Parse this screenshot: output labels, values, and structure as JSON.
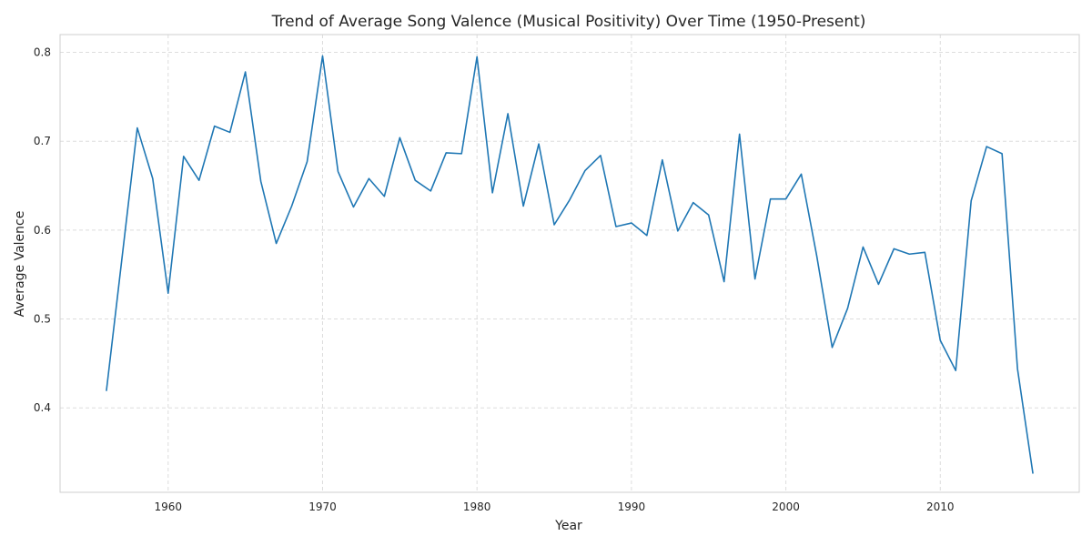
{
  "chart_data": {
    "type": "line",
    "title": "Trend of Average Song Valence (Musical Positivity) Over Time (1950-Present)",
    "xlabel": "Year",
    "ylabel": "Average Valence",
    "xlim": [
      1953,
      2019
    ],
    "ylim": [
      0.305,
      0.82
    ],
    "xticks": [
      1960,
      1970,
      1980,
      1990,
      2000,
      2010
    ],
    "yticks": [
      0.4,
      0.5,
      0.6,
      0.7,
      0.8
    ],
    "grid": true,
    "line_color": "#1f77b4",
    "x": [
      1956,
      1957,
      1958,
      1959,
      1960,
      1961,
      1962,
      1963,
      1964,
      1965,
      1966,
      1967,
      1968,
      1969,
      1970,
      1971,
      1972,
      1973,
      1974,
      1975,
      1976,
      1977,
      1978,
      1979,
      1980,
      1981,
      1982,
      1983,
      1984,
      1985,
      1986,
      1987,
      1988,
      1989,
      1990,
      1991,
      1992,
      1993,
      1994,
      1995,
      1996,
      1997,
      1998,
      1999,
      2000,
      2001,
      2002,
      2003,
      2004,
      2005,
      2006,
      2007,
      2008,
      2009,
      2010,
      2011,
      2012,
      2013,
      2014,
      2015,
      2016
    ],
    "values": [
      0.419,
      0.567,
      0.715,
      0.658,
      0.529,
      0.683,
      0.656,
      0.717,
      0.71,
      0.778,
      0.655,
      0.585,
      0.627,
      0.677,
      0.796,
      0.666,
      0.626,
      0.658,
      0.638,
      0.704,
      0.656,
      0.644,
      0.687,
      0.686,
      0.795,
      0.642,
      0.731,
      0.627,
      0.697,
      0.606,
      0.634,
      0.667,
      0.684,
      0.604,
      0.608,
      0.594,
      0.679,
      0.599,
      0.631,
      0.617,
      0.542,
      0.708,
      0.545,
      0.635,
      0.635,
      0.663,
      0.571,
      0.468,
      0.512,
      0.581,
      0.539,
      0.579,
      0.573,
      0.575,
      0.476,
      0.442,
      0.633,
      0.694,
      0.686,
      0.444,
      0.326
    ]
  }
}
